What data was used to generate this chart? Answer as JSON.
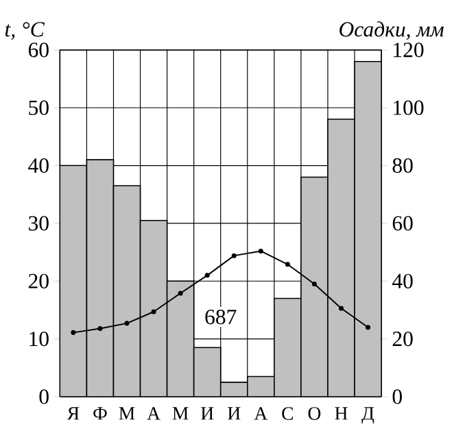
{
  "chart_data": {
    "type": "bar",
    "categories": [
      "Я",
      "Ф",
      "М",
      "А",
      "М",
      "И",
      "И",
      "А",
      "С",
      "О",
      "Н",
      "Д"
    ],
    "series": [
      {
        "axis": "y2",
        "color": "#c0c0c0",
        "values": [
          80,
          82,
          73,
          61,
          40,
          17,
          5,
          7,
          34,
          76,
          96,
          116
        ]
      },
      {
        "type": "line",
        "color": "#000000",
        "marker": "circle",
        "values": [
          11.1,
          11.8,
          12.7,
          14.7,
          17.9,
          21,
          24.4,
          25.2,
          22.9,
          19.5,
          15.3,
          12
        ]
      }
    ],
    "ylabel": "t, °C",
    "y2label": "Осадки, мм",
    "ylim": [
      0,
      60
    ],
    "yticks": [
      0,
      10,
      20,
      30,
      40,
      50,
      60
    ],
    "y2lim": [
      0,
      120
    ],
    "y2ticks": [
      0,
      20,
      40,
      60,
      80,
      100,
      120
    ],
    "grid": true,
    "annotations": [
      "687"
    ]
  }
}
